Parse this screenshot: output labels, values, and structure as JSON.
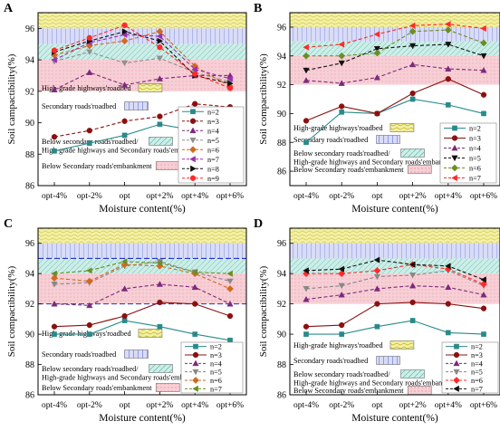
{
  "chart_data": [
    {
      "panel_label": "A",
      "type": "line",
      "categories": [
        "opt-4%",
        "opt-2%",
        "opt",
        "opt+2%",
        "opt+4%",
        "opt+6%"
      ],
      "xlabel": "Moisture content(%)",
      "ylabel": "Soil campactibility(%)",
      "ylim": [
        86,
        97
      ],
      "yticks": [
        86,
        88,
        90,
        92,
        94,
        96
      ],
      "bands": [
        {
          "label": "High-grade highways'roadbed",
          "range": [
            96,
            97
          ],
          "color": "#f3f0a6"
        },
        {
          "label": "Secondary roads'roadbed",
          "range": [
            95,
            96
          ],
          "color": "#d9dcf7"
        },
        {
          "label": "Below secondary roads'roadbed/ High-grade highways and Secondary roads'embankment",
          "range": [
            94,
            95
          ],
          "color": "#cdeee8"
        },
        {
          "label": "Below Secondary roads'embankment",
          "range": [
            92,
            94
          ],
          "color": "#f7cfd6"
        }
      ],
      "series": [
        {
          "name": "n=2",
          "marker": "square",
          "dash": "solid",
          "color": "#2a8a8a",
          "values": [
            88.2,
            88.7,
            89.2,
            89.9,
            89.5,
            89.2
          ]
        },
        {
          "name": "n=3",
          "marker": "circle",
          "dash": "dashed",
          "color": "#8b1010",
          "values": [
            89.1,
            89.5,
            90.1,
            90.4,
            91.2,
            91.0
          ]
        },
        {
          "name": "n=4",
          "marker": "triangle-up",
          "dash": "dashed",
          "color": "#7b2a7b",
          "values": [
            92.1,
            93.2,
            92.4,
            92.8,
            93.0,
            93.0
          ]
        },
        {
          "name": "n=5",
          "marker": "triangle-down",
          "dash": "dashed",
          "color": "#909090",
          "values": [
            93.9,
            94.5,
            93.8,
            94.1,
            93.2,
            92.6
          ]
        },
        {
          "name": "n=6",
          "marker": "diamond",
          "dash": "dashed",
          "color": "#d2691e",
          "values": [
            94.3,
            94.9,
            95.2,
            95.8,
            93.6,
            92.3
          ]
        },
        {
          "name": "n=7",
          "marker": "triangle-left",
          "dash": "dashed",
          "color": "#9b30b0",
          "values": [
            94.0,
            95.1,
            95.6,
            95.5,
            93.4,
            92.8
          ]
        },
        {
          "name": "n=8",
          "marker": "triangle-right",
          "dash": "dashed",
          "color": "#111111",
          "values": [
            94.5,
            95.2,
            95.8,
            95.2,
            93.0,
            92.5
          ]
        },
        {
          "name": "n=9",
          "marker": "circle",
          "dash": "dashed",
          "color": "#ff2a2a",
          "values": [
            94.6,
            95.4,
            96.2,
            94.8,
            93.1,
            92.2
          ]
        }
      ]
    },
    {
      "panel_label": "B",
      "type": "line",
      "categories": [
        "opt-4%",
        "opt-2%",
        "opt",
        "opt+2%",
        "opt+4%",
        "opt+6%"
      ],
      "xlabel": "Moisture content(%)",
      "ylabel": "Soil compactibility(%)",
      "ylim": [
        85,
        97
      ],
      "yticks": [
        86,
        88,
        90,
        92,
        94,
        96
      ],
      "bands": [
        {
          "label": "High-grade highways'roadbed",
          "range": [
            96,
            97
          ],
          "color": "#f3f0a6"
        },
        {
          "label": "Secondary roads'roadbed",
          "range": [
            95,
            96
          ],
          "color": "#d9dcf7"
        },
        {
          "label": "Below secondary roads'roadbed/ High-grade highways and Secondary roads'embankment",
          "range": [
            94,
            95
          ],
          "color": "#cdeee8"
        },
        {
          "label": "Below Secondary roads'embankment",
          "range": [
            92,
            94
          ],
          "color": "#f7cfd6"
        }
      ],
      "series": [
        {
          "name": "n=2",
          "marker": "square",
          "dash": "solid",
          "color": "#2a8a8a",
          "values": [
            88.0,
            90.1,
            90.0,
            91.0,
            90.6,
            90.0
          ]
        },
        {
          "name": "n=3",
          "marker": "circle",
          "dash": "solid",
          "color": "#8b1010",
          "values": [
            89.5,
            90.5,
            90.0,
            91.4,
            92.4,
            91.3
          ]
        },
        {
          "name": "n=4",
          "marker": "triangle-up",
          "dash": "dashed",
          "color": "#7b2a7b",
          "values": [
            92.3,
            92.1,
            92.5,
            93.4,
            93.1,
            93.0
          ]
        },
        {
          "name": "n=5",
          "marker": "triangle-down",
          "dash": "dashed",
          "color": "#111111",
          "values": [
            93.0,
            93.5,
            94.5,
            94.7,
            94.8,
            94.0
          ]
        },
        {
          "name": "n=6",
          "marker": "diamond",
          "dash": "dashed",
          "color": "#6b8e23",
          "values": [
            94.0,
            94.0,
            94.2,
            95.7,
            95.8,
            94.9
          ]
        },
        {
          "name": "n=7",
          "marker": "triangle-left",
          "dash": "dashed",
          "color": "#ff2a2a",
          "values": [
            94.6,
            94.8,
            95.5,
            96.1,
            96.2,
            95.9
          ]
        }
      ]
    },
    {
      "panel_label": "C",
      "type": "line",
      "categories": [
        "opt-4%",
        "opt-2%",
        "opt",
        "opt+2%",
        "opt+4%",
        "opt+6%"
      ],
      "xlabel": "Moisture content(%)",
      "ylabel": "Soil compactibility(%)",
      "ylim": [
        86,
        97
      ],
      "yticks": [
        86,
        88,
        90,
        92,
        94,
        96
      ],
      "bands": [
        {
          "label": "High-grade highways'roadbed",
          "range": [
            96,
            97
          ],
          "color": "#f3f0a6"
        },
        {
          "label": "Secondary roads'roadbed",
          "range": [
            95,
            96
          ],
          "color": "#d9dcf7"
        },
        {
          "label": "Below secondary roads'roadbed/ High-grade highways and Secondary roads'embankment",
          "range": [
            94,
            95
          ],
          "color": "#cdeee8"
        },
        {
          "label": "Below Secondary roads'embankment",
          "range": [
            92,
            94
          ],
          "color": "#f7cfd6"
        }
      ],
      "reference_lines": [
        92,
        95
      ],
      "series": [
        {
          "name": "n=2",
          "marker": "square",
          "dash": "solid",
          "color": "#2a8a8a",
          "values": [
            90.0,
            90.0,
            90.9,
            90.5,
            90.0,
            89.6
          ]
        },
        {
          "name": "n=3",
          "marker": "circle",
          "dash": "solid",
          "color": "#8b1010",
          "values": [
            90.5,
            90.6,
            91.2,
            92.1,
            92.0,
            91.2
          ]
        },
        {
          "name": "n=4",
          "marker": "triangle-up",
          "dash": "dashed",
          "color": "#7b2a7b",
          "values": [
            92.0,
            91.9,
            93.0,
            93.3,
            93.1,
            92.0
          ]
        },
        {
          "name": "n=5",
          "marker": "triangle-down",
          "dash": "dashed",
          "color": "#888888",
          "values": [
            93.3,
            93.4,
            94.5,
            94.8,
            94.1,
            93.5
          ]
        },
        {
          "name": "n=6",
          "marker": "diamond",
          "dash": "dashed",
          "color": "#d2691e",
          "values": [
            93.7,
            93.5,
            94.6,
            94.5,
            94.0,
            93.0
          ]
        },
        {
          "name": "n=7",
          "marker": "triangle-left",
          "dash": "dashed",
          "color": "#6b8e23",
          "values": [
            94.0,
            94.2,
            94.8,
            94.7,
            94.1,
            94.0
          ]
        }
      ]
    },
    {
      "panel_label": "D",
      "type": "line",
      "categories": [
        "opt-4%",
        "opt-2%",
        "opt",
        "opt+2%",
        "opt+4%",
        "opt+6%"
      ],
      "xlabel": "Moisture content(%)",
      "ylabel": "Soil compactibility(%)",
      "ylim": [
        86,
        97
      ],
      "yticks": [
        86,
        88,
        90,
        92,
        94,
        96
      ],
      "bands": [
        {
          "label": "High-grade highways'roadbed",
          "range": [
            96,
            97
          ],
          "color": "#f3f0a6"
        },
        {
          "label": "Secondary roads'roadbed",
          "range": [
            95,
            96
          ],
          "color": "#d9dcf7"
        },
        {
          "label": "Below secondary roads'roadbed/ High-grade highways and Secondary roads'embankment",
          "range": [
            94,
            95
          ],
          "color": "#cdeee8"
        },
        {
          "label": "Below Secondary roads'embankment",
          "range": [
            92,
            94
          ],
          "color": "#f7cfd6"
        }
      ],
      "series": [
        {
          "name": "n=2",
          "marker": "square",
          "dash": "solid",
          "color": "#2a8a8a",
          "values": [
            90.0,
            90.0,
            90.5,
            90.9,
            90.1,
            90.0
          ]
        },
        {
          "name": "n=3",
          "marker": "circle",
          "dash": "solid",
          "color": "#8b1010",
          "values": [
            90.5,
            90.6,
            92.0,
            92.1,
            92.0,
            91.7
          ]
        },
        {
          "name": "n=4",
          "marker": "triangle-up",
          "dash": "dashed",
          "color": "#7b2a7b",
          "values": [
            92.3,
            92.6,
            93.0,
            93.2,
            93.1,
            92.6
          ]
        },
        {
          "name": "n=5",
          "marker": "triangle-down",
          "dash": "dashed",
          "color": "#888888",
          "values": [
            93.0,
            93.2,
            93.8,
            93.9,
            94.2,
            93.2
          ]
        },
        {
          "name": "n=6",
          "marker": "diamond",
          "dash": "dashed",
          "color": "#ff2a2a",
          "values": [
            94.0,
            94.0,
            94.2,
            94.6,
            94.3,
            93.3
          ]
        },
        {
          "name": "n=7",
          "marker": "triangle-left",
          "dash": "dashed",
          "color": "#111111",
          "values": [
            94.2,
            94.3,
            94.9,
            94.6,
            94.5,
            93.6
          ]
        }
      ]
    }
  ]
}
